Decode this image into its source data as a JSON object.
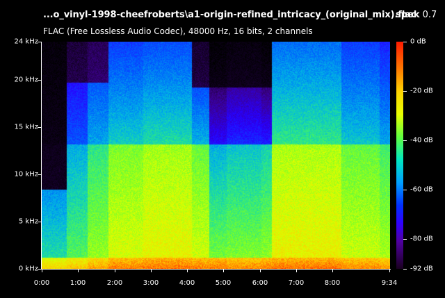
{
  "header": {
    "file_title": "...o_vinyl-1998-cheefroberts\\a1-origin-refined_intricacy_(original_mix).flac",
    "app_name": "spek",
    "app_version": "0.7",
    "stream_info": "FLAC (Free Lossless Audio Codec), 48000 Hz, 16 bits, 2 channels"
  },
  "frequency_axis": {
    "labels": [
      "24 kHz",
      "20 kHz",
      "15 kHz",
      "10 kHz",
      "5 kHz",
      "0 kHz"
    ],
    "values_khz": [
      24,
      20,
      15,
      10,
      5,
      0
    ],
    "max_khz": 24
  },
  "time_axis": {
    "labels": [
      "0:00",
      "1:00",
      "2:00",
      "3:00",
      "4:00",
      "5:00",
      "6:00",
      "7:00",
      "8:00",
      "9:34"
    ],
    "values_sec": [
      0,
      60,
      120,
      180,
      240,
      300,
      360,
      420,
      480,
      574
    ],
    "duration_sec": 574
  },
  "colorbar": {
    "labels": [
      "0 dB",
      "-20 dB",
      "-40 dB",
      "-60 dB",
      "-80 dB",
      "-92 dB"
    ],
    "values_db": [
      0,
      -20,
      -40,
      -60,
      -80,
      -92
    ],
    "min_db": -92
  },
  "colors": {
    "background": "#000000",
    "text": "#ffffff"
  }
}
